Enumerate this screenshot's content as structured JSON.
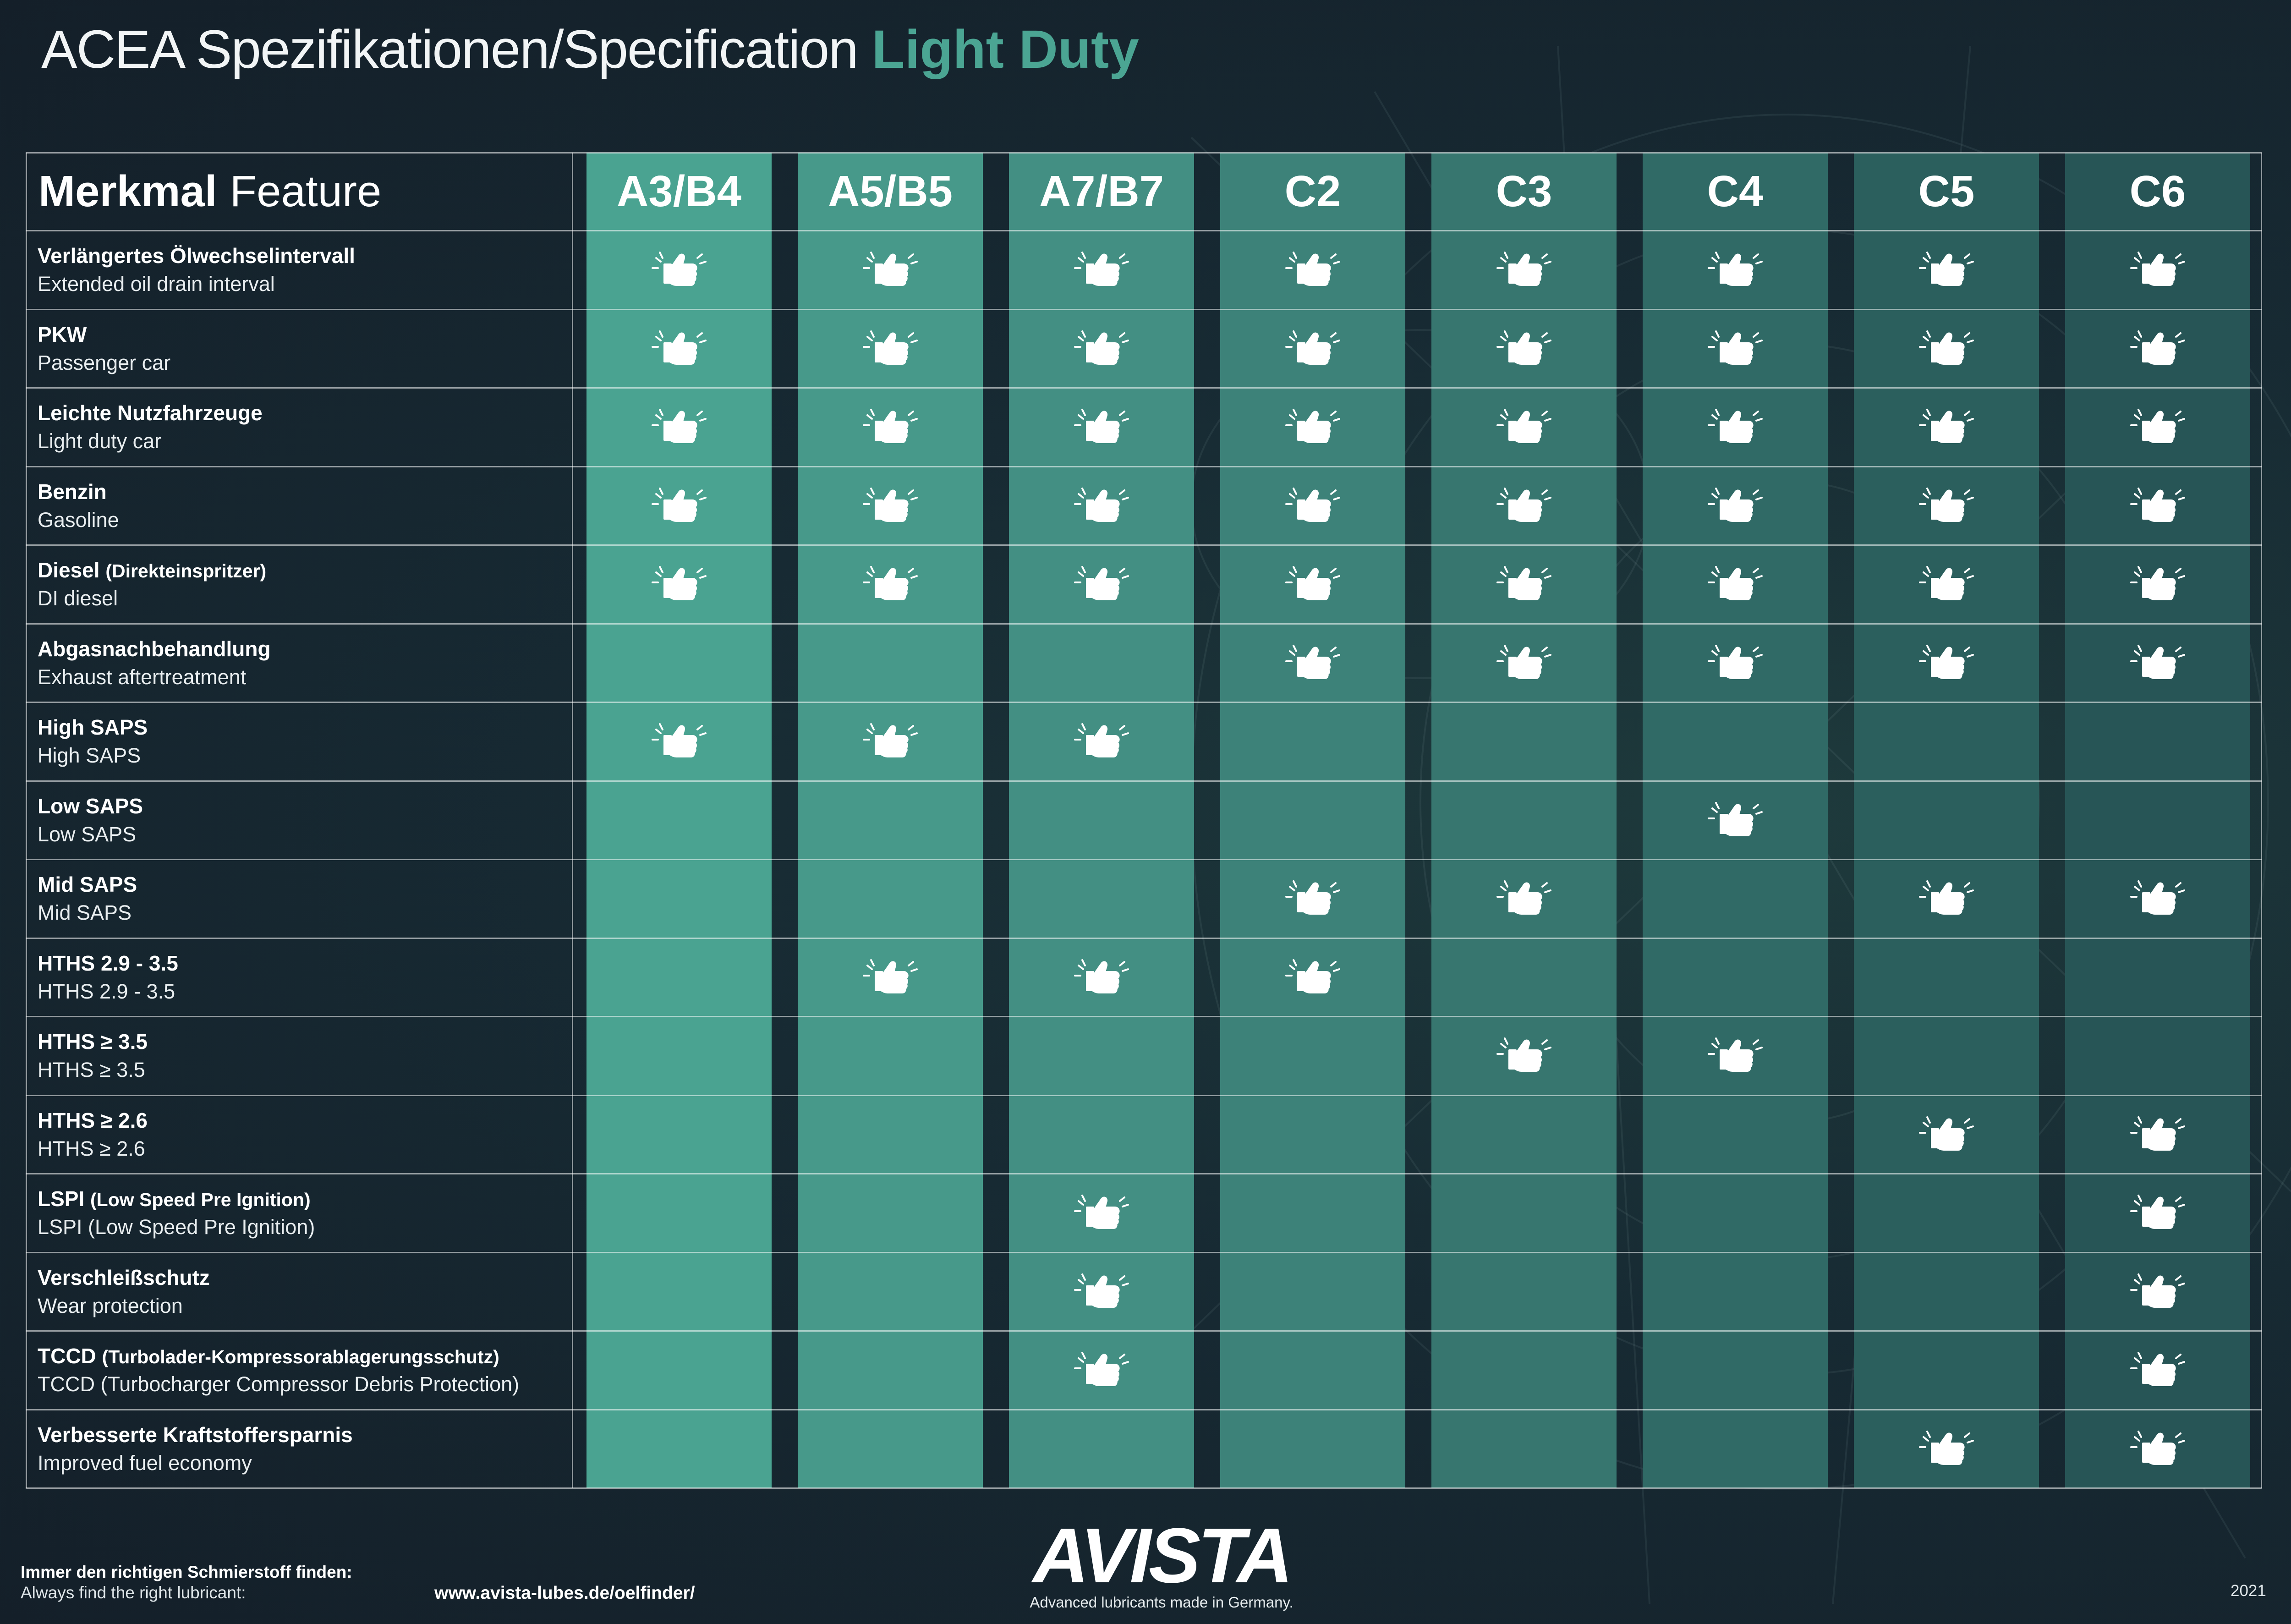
{
  "title": {
    "prefix": "ACEA Spezifikationen/Specification",
    "highlight": "Light Duty"
  },
  "feature_header": {
    "de": "Merkmal",
    "en": "Feature"
  },
  "columns": [
    "A3/B4",
    "A5/B5",
    "A7/B7",
    "C2",
    "C3",
    "C4",
    "C5",
    "C6"
  ],
  "column_colors": [
    "#4aa391",
    "#47998a",
    "#438f83",
    "#3d8279",
    "#37766f",
    "#306a66",
    "#2b5f5d",
    "#275556"
  ],
  "rows": [
    {
      "de": "Verlängertes Ölwechselintervall",
      "de_small": "",
      "en": "Extended oil drain interval",
      "marks": [
        1,
        1,
        1,
        1,
        1,
        1,
        1,
        1
      ]
    },
    {
      "de": "PKW",
      "de_small": "",
      "en": "Passenger car",
      "marks": [
        1,
        1,
        1,
        1,
        1,
        1,
        1,
        1
      ]
    },
    {
      "de": "Leichte Nutzfahrzeuge",
      "de_small": "",
      "en": "Light duty car",
      "marks": [
        1,
        1,
        1,
        1,
        1,
        1,
        1,
        1
      ]
    },
    {
      "de": "Benzin",
      "de_small": "",
      "en": "Gasoline",
      "marks": [
        1,
        1,
        1,
        1,
        1,
        1,
        1,
        1
      ]
    },
    {
      "de": "Diesel ",
      "de_small": "(Direkteinspritzer)",
      "en": "DI diesel",
      "marks": [
        1,
        1,
        1,
        1,
        1,
        1,
        1,
        1
      ]
    },
    {
      "de": "Abgasnachbehandlung",
      "de_small": "",
      "en": "Exhaust aftertreatment",
      "marks": [
        0,
        0,
        0,
        1,
        1,
        1,
        1,
        1
      ]
    },
    {
      "de": "High SAPS",
      "de_small": "",
      "en": "High SAPS",
      "marks": [
        1,
        1,
        1,
        0,
        0,
        0,
        0,
        0
      ]
    },
    {
      "de": "Low SAPS",
      "de_small": "",
      "en": "Low SAPS",
      "marks": [
        0,
        0,
        0,
        0,
        0,
        1,
        0,
        0
      ]
    },
    {
      "de": "Mid SAPS",
      "de_small": "",
      "en": "Mid SAPS",
      "marks": [
        0,
        0,
        0,
        1,
        1,
        0,
        1,
        1
      ]
    },
    {
      "de": "HTHS 2.9 - 3.5",
      "de_small": "",
      "en": "HTHS 2.9 - 3.5",
      "marks": [
        0,
        1,
        1,
        1,
        0,
        0,
        0,
        0
      ]
    },
    {
      "de": "HTHS ≥ 3.5",
      "de_small": "",
      "en": "HTHS ≥ 3.5",
      "marks": [
        0,
        0,
        0,
        0,
        1,
        1,
        0,
        0
      ]
    },
    {
      "de": "HTHS ≥ 2.6",
      "de_small": "",
      "en": "HTHS ≥ 2.6",
      "marks": [
        0,
        0,
        0,
        0,
        0,
        0,
        1,
        1
      ]
    },
    {
      "de": "LSPI ",
      "de_small": "(Low Speed Pre Ignition)",
      "en": "LSPI (Low Speed Pre Ignition)",
      "marks": [
        0,
        0,
        1,
        0,
        0,
        0,
        0,
        1
      ]
    },
    {
      "de": "Verschleißschutz",
      "de_small": "",
      "en": "Wear protection",
      "marks": [
        0,
        0,
        1,
        0,
        0,
        0,
        0,
        1
      ]
    },
    {
      "de": "TCCD ",
      "de_small": "(Turbolader-Kompressorablagerungsschutz)",
      "en": "TCCD (Turbocharger Compressor Debris Protection)",
      "marks": [
        0,
        0,
        1,
        0,
        0,
        0,
        0,
        1
      ]
    },
    {
      "de": "Verbesserte Kraftstoffersparnis",
      "de_small": "",
      "en": "Improved fuel economy",
      "marks": [
        0,
        0,
        0,
        0,
        0,
        0,
        1,
        1
      ]
    }
  ],
  "mark_icon": "thumbs-up-icon",
  "footer": {
    "line1": "Immer den richtigen Schmierstoff finden:",
    "line2": "Always find the right lubricant:",
    "url": "www.avista-lubes.de/oelfinder/",
    "brand": "AVISTA",
    "tagline": "Advanced lubricants made in Germany.",
    "year": "2021"
  }
}
